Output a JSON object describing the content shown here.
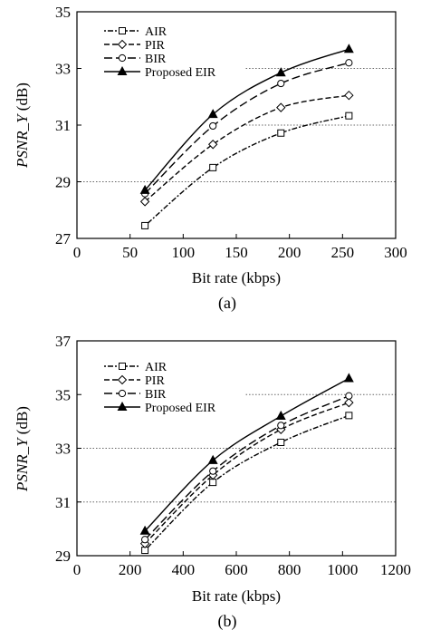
{
  "chart_data": [
    {
      "type": "line",
      "caption": "(a)",
      "xlabel": "Bit rate (kbps)",
      "ylabel_main": "PSNR_Y",
      "ylabel_unit": " (dB)",
      "xlim": [
        0,
        300
      ],
      "ylim": [
        27,
        35
      ],
      "xticks": [
        0,
        50,
        100,
        150,
        200,
        250,
        300
      ],
      "yticks": [
        27,
        29,
        31,
        33,
        35
      ],
      "grid": "horizontal dotted",
      "legend": "top-left",
      "x": [
        64,
        128,
        192,
        256
      ],
      "series": [
        {
          "name": "AIR",
          "marker": "square",
          "dash": "2,2,6,2",
          "values": [
            27.45,
            29.5,
            30.72,
            31.33
          ]
        },
        {
          "name": "PIR",
          "marker": "diamond",
          "dash": "6,3",
          "values": [
            28.3,
            30.32,
            31.62,
            32.05
          ]
        },
        {
          "name": "BIR",
          "marker": "circle",
          "dash": "9,4",
          "values": [
            28.58,
            30.97,
            32.47,
            33.2
          ]
        },
        {
          "name": "Proposed EIR",
          "marker": "triangle",
          "dash": "",
          "values": [
            28.7,
            31.38,
            32.85,
            33.68
          ]
        }
      ]
    },
    {
      "type": "line",
      "caption": "(b)",
      "xlabel": "Bit rate (kbps)",
      "ylabel_main": "PSNR_Y",
      "ylabel_unit": " (dB)",
      "xlim": [
        0,
        1200
      ],
      "ylim": [
        29,
        37
      ],
      "xticks": [
        0,
        200,
        400,
        600,
        800,
        1000,
        1200
      ],
      "yticks": [
        29,
        31,
        33,
        35,
        37
      ],
      "grid": "horizontal dotted",
      "legend": "top-left",
      "x": [
        256,
        512,
        768,
        1024
      ],
      "series": [
        {
          "name": "AIR",
          "marker": "square",
          "dash": "2,2,6,2",
          "values": [
            29.2,
            31.73,
            33.22,
            34.22
          ]
        },
        {
          "name": "PIR",
          "marker": "diamond",
          "dash": "6,3",
          "values": [
            29.45,
            32.0,
            33.7,
            34.7
          ]
        },
        {
          "name": "BIR",
          "marker": "circle",
          "dash": "9,4",
          "values": [
            29.6,
            32.15,
            33.85,
            34.95
          ]
        },
        {
          "name": "Proposed EIR",
          "marker": "triangle",
          "dash": "",
          "values": [
            29.92,
            32.55,
            34.2,
            35.6
          ]
        }
      ]
    }
  ]
}
